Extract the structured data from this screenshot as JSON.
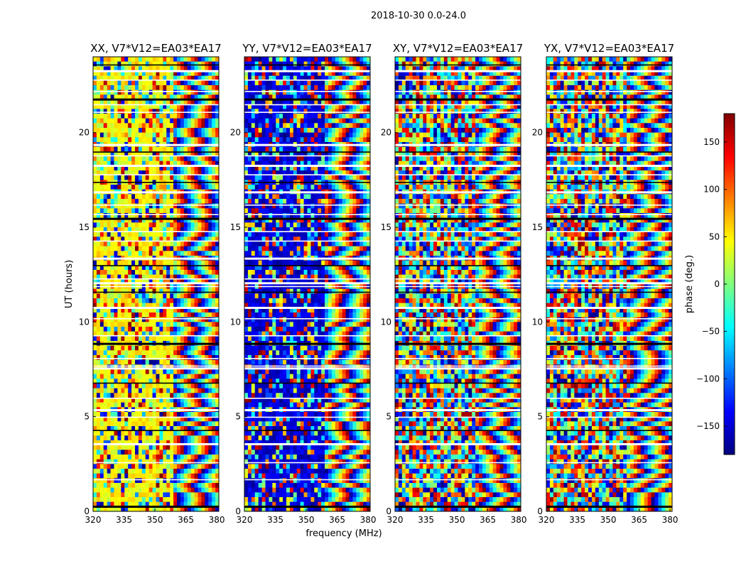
{
  "figure_title": "2018-10-30 0.0-24.0",
  "chart_data": {
    "type": "heatmap",
    "title": "2018-10-30 0.0-24.0",
    "xlabel": "frequency (MHz)",
    "ylabel": "UT (hours)",
    "xlim": [
      320,
      381
    ],
    "ylim": [
      0,
      24
    ],
    "x_ticks": [
      320,
      335,
      350,
      365,
      380
    ],
    "y_ticks": [
      0,
      5,
      10,
      15,
      20
    ],
    "colorbar": {
      "label": "phase (deg.)",
      "range": [
        -180,
        180
      ],
      "ticks": [
        150,
        100,
        50,
        0,
        -50,
        -100,
        -150
      ],
      "tick_labels": [
        "150",
        "100",
        "50",
        "0",
        "−50",
        "−100",
        "−150"
      ],
      "colormap": "jet"
    },
    "panels": [
      {
        "title": "XX, V7*V12=EA03*EA17",
        "dominant_phase_low_freq": 45
      },
      {
        "title": "YY, V7*V12=EA03*EA17",
        "dominant_phase_low_freq": -150
      },
      {
        "title": "XY, V7*V12=EA03*EA17",
        "dominant_phase_low_freq": null
      },
      {
        "title": "YX, V7*V12=EA03*EA17",
        "dominant_phase_low_freq": null
      }
    ],
    "flagged_row_hours": [
      0.3,
      1.7,
      2.6,
      3.6,
      4.3,
      5.0,
      5.4,
      6.0,
      6.8,
      7.6,
      7.7,
      8.1,
      8.9,
      9.3,
      10.2,
      10.8,
      11.6,
      11.9,
      12.1,
      12.3,
      13.0,
      13.4,
      14.3,
      14.8,
      15.5,
      15.7,
      16.2,
      16.9,
      17.4,
      17.8,
      18.3,
      18.8,
      19.0,
      19.4,
      21.1,
      21.5,
      21.8,
      22.2,
      22.8,
      23.3,
      23.6
    ]
  },
  "colors": {
    "axis": "#000000",
    "background": "#ffffff",
    "jet": [
      "#00007f",
      "#0000ff",
      "#007fff",
      "#00ffff",
      "#7fff7f",
      "#ffff00",
      "#ff7f00",
      "#ff0000",
      "#7f0000"
    ]
  }
}
